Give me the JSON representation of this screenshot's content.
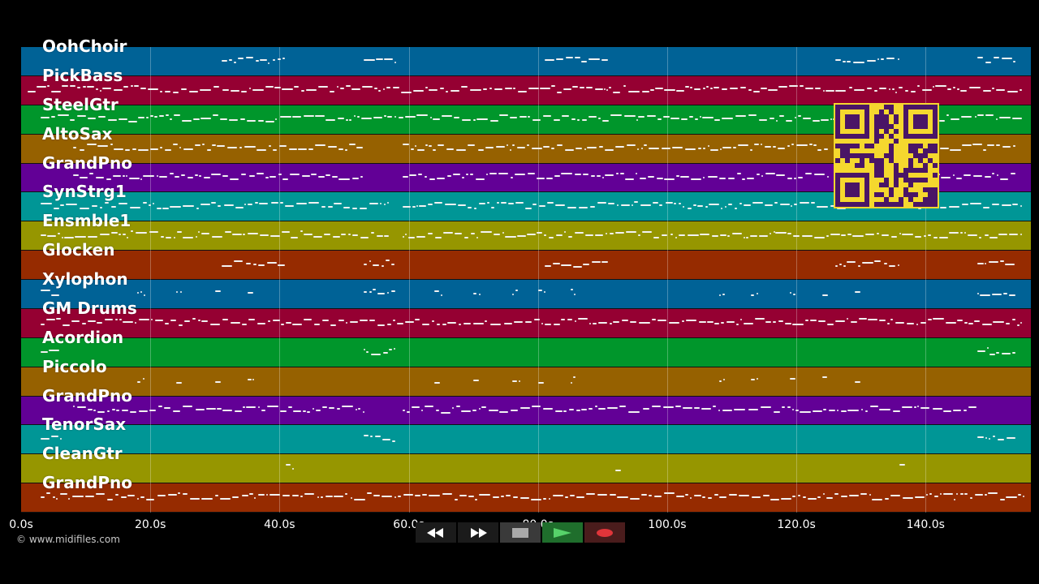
{
  "tracks": [
    {
      "name": "OohChoir",
      "color": "#006296"
    },
    {
      "name": "PickBass",
      "color": "#950032"
    },
    {
      "name": "SteelGtr",
      "color": "#00962b"
    },
    {
      "name": "AltoSax",
      "color": "#966100"
    },
    {
      "name": "GrandPno",
      "color": "#620096"
    },
    {
      "name": "SynStrg1",
      "color": "#009696"
    },
    {
      "name": "Ensmble1",
      "color": "#969600"
    },
    {
      "name": "Glocken",
      "color": "#962b00"
    },
    {
      "name": "Xylophon",
      "color": "#006296"
    },
    {
      "name": "GM Drums",
      "color": "#950032"
    },
    {
      "name": "Acordion",
      "color": "#00962b"
    },
    {
      "name": "Piccolo",
      "color": "#966100"
    },
    {
      "name": "GrandPno",
      "color": "#620096"
    },
    {
      "name": "TenorSax",
      "color": "#009696"
    },
    {
      "name": "CleanGtr",
      "color": "#969600"
    },
    {
      "name": "GrandPno",
      "color": "#962b00"
    }
  ],
  "time_axis": {
    "ticks": [
      "0.0s",
      "20.0s",
      "40.0s",
      "60.0s",
      "80.0s",
      "100.0s",
      "120.0s",
      "140.0s"
    ],
    "tick_seconds": [
      0,
      20,
      40,
      60,
      80,
      100,
      120,
      140
    ],
    "max_seconds": 156.3
  },
  "copyright": "© www.midifiles.com",
  "transport": {
    "buttons": [
      {
        "name": "rewind-button",
        "icon": "rewind-icon"
      },
      {
        "name": "fast-forward-button",
        "icon": "fast-forward-icon"
      },
      {
        "name": "stop-button",
        "icon": "stop-icon"
      },
      {
        "name": "play-button",
        "icon": "play-icon"
      },
      {
        "name": "record-button",
        "icon": "record-icon"
      }
    ]
  },
  "qr_code": {
    "color": "#f5d82e",
    "module_color": "#4a1566"
  },
  "note_color": "#f2f2f2"
}
